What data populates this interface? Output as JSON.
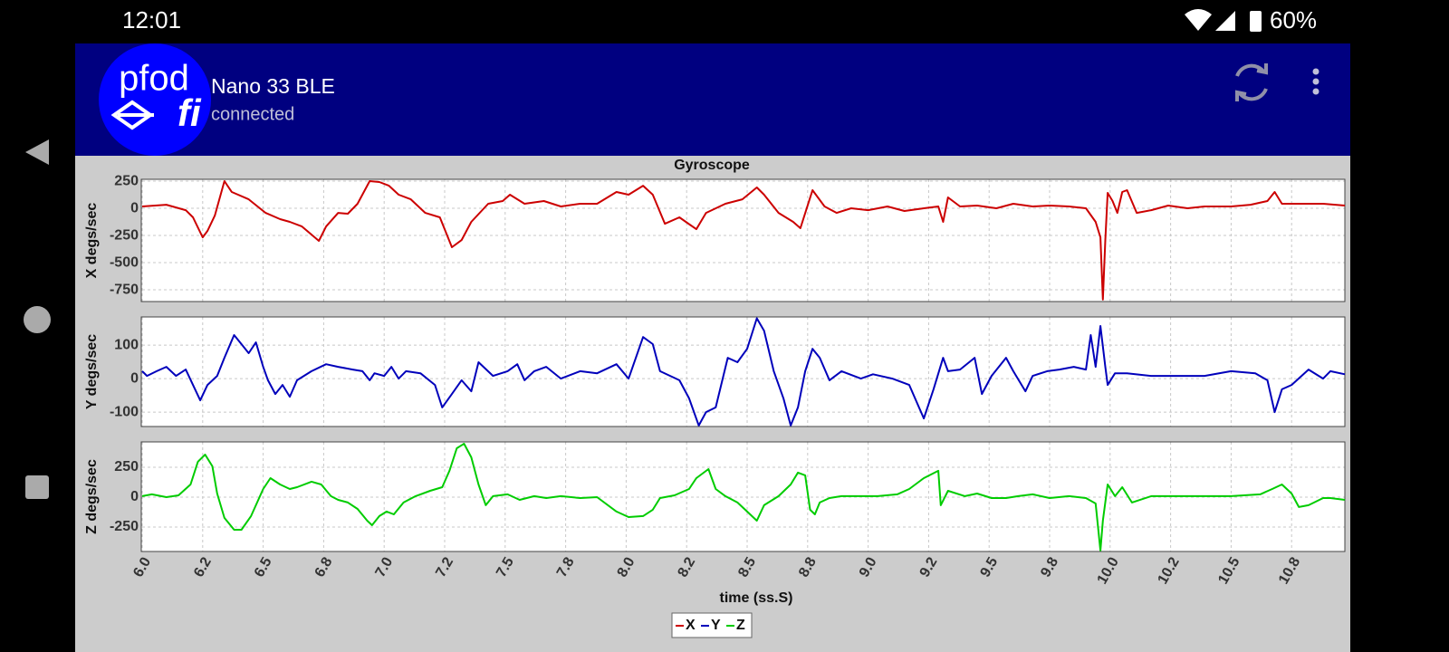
{
  "status_bar": {
    "time": "12:01",
    "battery": "60%"
  },
  "app_bar": {
    "logo": "pfod",
    "logo_sub": "fi",
    "title": "Nano 33 BLE",
    "subtitle": "connected"
  },
  "chart_data": [
    {
      "type": "line",
      "title": "Gyroscope",
      "ylabel": "X degs/sec",
      "x": [
        6.0,
        6.1,
        6.18,
        6.21,
        6.25,
        6.27,
        6.3,
        6.34,
        6.37,
        6.44,
        6.51,
        6.57,
        6.61,
        6.66,
        6.73,
        6.76,
        6.81,
        6.85,
        6.89,
        6.94,
        6.98,
        7.02,
        7.06,
        7.11,
        7.17,
        7.23,
        7.28,
        7.32,
        7.36,
        7.43,
        7.49,
        7.52,
        7.58,
        7.66,
        7.73,
        7.81,
        7.88,
        7.96,
        8.01,
        8.07,
        8.11,
        8.16,
        8.22,
        8.29,
        8.33,
        8.41,
        8.48,
        8.54,
        8.57,
        8.63,
        8.69,
        8.72,
        8.77,
        8.82,
        8.87,
        8.93,
        9.0,
        9.08,
        9.15,
        9.23,
        9.29,
        9.31,
        9.33,
        9.38,
        9.45,
        9.53,
        9.6,
        9.68,
        9.75,
        9.83,
        9.9,
        9.94,
        9.96,
        9.97,
        9.98,
        9.99,
        10.01,
        10.03,
        10.05,
        10.07,
        10.11,
        10.17,
        10.24,
        10.32,
        10.39,
        10.5,
        10.58,
        10.65,
        10.68,
        10.71,
        10.8,
        10.88,
        10.97
      ],
      "series": [
        {
          "name": "X",
          "color": "#cc0000",
          "values": [
            17,
            33,
            -17,
            -83,
            -267,
            -208,
            -67,
            250,
            150,
            83,
            -42,
            -100,
            -125,
            -167,
            -300,
            -167,
            -42,
            -50,
            42,
            250,
            242,
            208,
            125,
            83,
            -42,
            -83,
            -358,
            -292,
            -125,
            42,
            67,
            125,
            42,
            67,
            17,
            42,
            42,
            150,
            125,
            208,
            125,
            -142,
            -83,
            -192,
            -42,
            42,
            83,
            192,
            125,
            -42,
            -125,
            -183,
            167,
            17,
            -42,
            0,
            -17,
            17,
            -25,
            0,
            17,
            -125,
            100,
            17,
            25,
            0,
            42,
            17,
            25,
            17,
            0,
            -125,
            -267,
            -840,
            -292,
            142,
            67,
            -42,
            150,
            167,
            -42,
            -17,
            25,
            0,
            17,
            17,
            33,
            67,
            150,
            42,
            42,
            42,
            25
          ]
        }
      ],
      "xlim": [
        6.0,
        10.97
      ],
      "ylim": [
        -858,
        267
      ],
      "yticks": [
        250,
        0,
        -250,
        -500,
        -750
      ],
      "grid": true
    },
    {
      "type": "line",
      "ylabel": "Y degs/sec",
      "x": [
        6.0,
        6.02,
        6.06,
        6.1,
        6.14,
        6.18,
        6.21,
        6.24,
        6.27,
        6.31,
        6.34,
        6.38,
        6.41,
        6.44,
        6.47,
        6.5,
        6.52,
        6.55,
        6.58,
        6.61,
        6.64,
        6.7,
        6.76,
        6.81,
        6.87,
        6.91,
        6.94,
        6.96,
        7.0,
        7.03,
        7.06,
        7.09,
        7.15,
        7.21,
        7.24,
        7.28,
        7.32,
        7.36,
        7.39,
        7.45,
        7.51,
        7.55,
        7.58,
        7.62,
        7.67,
        7.73,
        7.81,
        7.88,
        7.96,
        8.01,
        8.07,
        8.11,
        8.14,
        8.22,
        8.26,
        8.3,
        8.33,
        8.37,
        8.42,
        8.46,
        8.5,
        8.54,
        8.57,
        8.61,
        8.65,
        8.68,
        8.71,
        8.74,
        8.77,
        8.8,
        8.84,
        8.89,
        8.97,
        9.02,
        9.1,
        9.17,
        9.23,
        9.27,
        9.31,
        9.33,
        9.38,
        9.44,
        9.47,
        9.51,
        9.57,
        9.6,
        9.65,
        9.68,
        9.74,
        9.79,
        9.85,
        9.9,
        9.92,
        9.94,
        9.96,
        9.98,
        9.99,
        10.02,
        10.07,
        10.17,
        10.28,
        10.39,
        10.5,
        10.6,
        10.65,
        10.68,
        10.71,
        10.75,
        10.82,
        10.88,
        10.91,
        10.97
      ],
      "series": [
        {
          "name": "Y",
          "color": "#0000bb",
          "values": [
            22,
            8,
            22,
            35,
            8,
            27,
            -19,
            -65,
            -19,
            8,
            62,
            130,
            103,
            76,
            108,
            35,
            -5,
            -46,
            -19,
            -54,
            -5,
            22,
            43,
            35,
            27,
            22,
            -5,
            16,
            8,
            35,
            0,
            22,
            16,
            -19,
            -86,
            -46,
            -5,
            -38,
            49,
            8,
            22,
            43,
            -5,
            22,
            35,
            0,
            22,
            16,
            43,
            0,
            124,
            103,
            22,
            -5,
            -59,
            -140,
            -100,
            -86,
            62,
            49,
            89,
            180,
            143,
            22,
            -59,
            -140,
            -86,
            22,
            89,
            62,
            -5,
            22,
            0,
            13,
            0,
            -19,
            -119,
            -32,
            62,
            22,
            27,
            62,
            -46,
            8,
            62,
            22,
            -38,
            8,
            22,
            27,
            35,
            27,
            130,
            35,
            157,
            35,
            -19,
            16,
            16,
            8,
            8,
            8,
            22,
            16,
            -5,
            -100,
            -32,
            -19,
            27,
            0,
            22,
            13
          ]
        }
      ],
      "xlim": [
        6.0,
        10.97
      ],
      "ylim": [
        -143,
        184
      ],
      "yticks": [
        100,
        0,
        -100
      ],
      "grid": true
    },
    {
      "type": "line",
      "ylabel": "Z degs/sec",
      "xlabel": "time (ss.S)",
      "x": [
        6.0,
        6.04,
        6.1,
        6.15,
        6.2,
        6.23,
        6.26,
        6.29,
        6.31,
        6.34,
        6.38,
        6.41,
        6.45,
        6.5,
        6.53,
        6.57,
        6.61,
        6.64,
        6.7,
        6.74,
        6.78,
        6.81,
        6.85,
        6.89,
        6.93,
        6.95,
        6.98,
        7.01,
        7.04,
        7.08,
        7.13,
        7.19,
        7.24,
        7.27,
        7.3,
        7.33,
        7.36,
        7.39,
        7.42,
        7.45,
        7.51,
        7.56,
        7.62,
        7.67,
        7.73,
        7.81,
        7.88,
        7.96,
        8.01,
        8.07,
        8.11,
        8.14,
        8.2,
        8.26,
        8.29,
        8.34,
        8.37,
        8.41,
        8.46,
        8.5,
        8.54,
        8.57,
        8.63,
        8.68,
        8.71,
        8.74,
        8.76,
        8.78,
        8.8,
        8.84,
        8.89,
        8.97,
        9.04,
        9.12,
        9.17,
        9.23,
        9.29,
        9.3,
        9.33,
        9.4,
        9.45,
        9.51,
        9.57,
        9.62,
        9.68,
        9.75,
        9.83,
        9.9,
        9.94,
        9.96,
        9.97,
        9.99,
        10.02,
        10.05,
        10.09,
        10.17,
        10.28,
        10.39,
        10.5,
        10.62,
        10.67,
        10.71,
        10.75,
        10.78,
        10.82,
        10.88,
        10.91,
        10.97
      ],
      "series": [
        {
          "name": "Z",
          "color": "#00cc00",
          "values": [
            8,
            23,
            0,
            15,
            106,
            296,
            356,
            258,
            30,
            -174,
            -273,
            -273,
            -159,
            68,
            159,
            106,
            68,
            83,
            129,
            106,
            8,
            -23,
            -45,
            -99,
            -197,
            -235,
            -159,
            -121,
            -144,
            -45,
            8,
            53,
            83,
            220,
            409,
            447,
            333,
            106,
            -68,
            8,
            23,
            -23,
            8,
            -8,
            8,
            -8,
            0,
            -121,
            -167,
            -159,
            -106,
            -8,
            15,
            68,
            159,
            235,
            68,
            8,
            -45,
            -121,
            -197,
            -68,
            8,
            106,
            205,
            182,
            -106,
            -144,
            -45,
            -8,
            8,
            8,
            8,
            23,
            68,
            159,
            220,
            -68,
            53,
            8,
            30,
            -8,
            -8,
            8,
            23,
            -8,
            8,
            -8,
            -53,
            -447,
            -197,
            106,
            8,
            83,
            -45,
            8,
            8,
            8,
            8,
            23,
            68,
            106,
            30,
            -83,
            -68,
            -8,
            -8,
            -23
          ]
        }
      ],
      "xlim": [
        6.0,
        10.97
      ],
      "ylim": [
        -455,
        462
      ],
      "yticks": [
        250,
        0,
        -250
      ],
      "grid": true,
      "xticks": [
        {
          "value": 6,
          "label": "6.0"
        },
        {
          "value": 6.25,
          "label": "6.2"
        },
        6.5,
        {
          "value": 6.75,
          "label": "6.8"
        },
        {
          "value": 7,
          "label": "7.0"
        },
        {
          "value": 7.25,
          "label": "7.2"
        },
        7.5,
        {
          "value": 7.75,
          "label": "7.8"
        },
        {
          "value": 8,
          "label": "8.0"
        },
        {
          "value": 8.25,
          "label": "8.2"
        },
        8.5,
        {
          "value": 8.75,
          "label": "8.8"
        },
        {
          "value": 9,
          "label": "9.0"
        },
        {
          "value": 9.25,
          "label": "9.2"
        },
        9.5,
        {
          "value": 9.75,
          "label": "9.8"
        },
        {
          "value": 10,
          "label": "10.0"
        },
        {
          "value": 10.25,
          "label": "10.2"
        },
        10.5,
        {
          "value": 10.75,
          "label": "10.8"
        }
      ]
    }
  ]
}
